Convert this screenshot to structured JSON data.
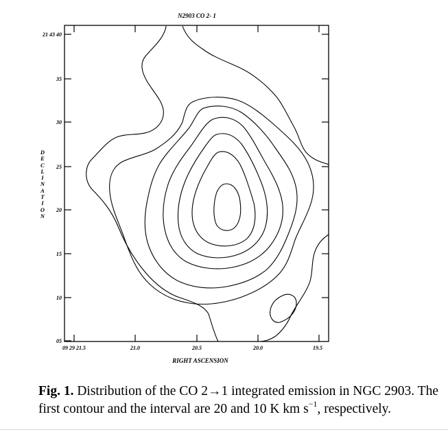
{
  "figure": {
    "title": "N2903 CO 2- 1",
    "xlabel": "RIGHT ASCENSION",
    "ylabel": "DECLINATION",
    "ylabel_letters": [
      "D",
      "E",
      "C",
      "L",
      "I",
      "N",
      "A",
      "T",
      "I",
      "O",
      "N"
    ],
    "yticks": [
      "21 43 40",
      "35",
      "30",
      "25",
      "20",
      "15",
      "10",
      "05"
    ],
    "xticks": [
      "09 29 21.5",
      "21.0",
      "20.5",
      "20.0",
      "19.5"
    ]
  },
  "chart_data": {
    "type": "contour",
    "title": "N2903 CO 2- 1",
    "xlabel": "RIGHT ASCENSION",
    "ylabel": "DECLINATION",
    "x_ticks": [
      "09 29 21.5",
      "21.0",
      "20.5",
      "20.0",
      "19.5"
    ],
    "y_ticks": [
      "21 43 40",
      "35",
      "30",
      "25",
      "20",
      "15",
      "10",
      "05"
    ],
    "contour_first_level": 20,
    "contour_interval": 10,
    "contour_unit": "K  km s^-1",
    "contour_level_count": 7
  },
  "caption": {
    "label": "Fig. 1.",
    "text_1": "Distribution of the CO 2",
    "arrow": "→",
    "text_2": "1 integrated emission in NGC 2903. The first contour and the interval are 20 and 10 K  km s",
    "sup": "−1",
    "text_3": ", respectively."
  }
}
